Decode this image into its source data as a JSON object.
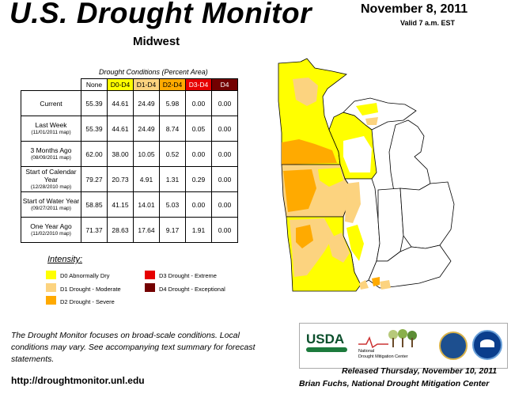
{
  "header": {
    "title": "U.S. Drought Monitor",
    "region": "Midwest",
    "date": "November 8, 2011",
    "valid": "Valid 7 a.m. EST"
  },
  "chart_data": {
    "type": "table",
    "caption": "Drought Conditions (Percent Area)",
    "columns": [
      "None",
      "D0-D4",
      "D1-D4",
      "D2-D4",
      "D3-D4",
      "D4"
    ],
    "rows": [
      {
        "label": "Current",
        "sublabel": "",
        "values": [
          "55.39",
          "44.61",
          "24.49",
          "5.98",
          "0.00",
          "0.00"
        ]
      },
      {
        "label": "Last Week",
        "sublabel": "(11/01/2011 map)",
        "values": [
          "55.39",
          "44.61",
          "24.49",
          "8.74",
          "0.05",
          "0.00"
        ]
      },
      {
        "label": "3 Months Ago",
        "sublabel": "(08/09/2011 map)",
        "values": [
          "62.00",
          "38.00",
          "10.05",
          "0.52",
          "0.00",
          "0.00"
        ]
      },
      {
        "label": "Start of Calendar Year",
        "sublabel": "(12/28/2010 map)",
        "values": [
          "79.27",
          "20.73",
          "4.91",
          "1.31",
          "0.29",
          "0.00"
        ]
      },
      {
        "label": "Start of Water Year",
        "sublabel": "(09/27/2011 map)",
        "values": [
          "58.85",
          "41.15",
          "14.01",
          "5.03",
          "0.00",
          "0.00"
        ]
      },
      {
        "label": "One Year Ago",
        "sublabel": "(11/02/2010 map)",
        "values": [
          "71.37",
          "28.63",
          "17.64",
          "9.17",
          "1.91",
          "0.00"
        ]
      }
    ]
  },
  "legend": {
    "title": "Intensity:",
    "items": [
      {
        "label": "D0 Abnormally Dry",
        "color": "#ffff00"
      },
      {
        "label": "D1 Drought - Moderate",
        "color": "#fcd37f"
      },
      {
        "label": "D2 Drought - Severe",
        "color": "#ffaa00"
      },
      {
        "label": "D3 Drought - Extreme",
        "color": "#e60000"
      },
      {
        "label": "D4 Drought - Exceptional",
        "color": "#730000"
      }
    ]
  },
  "colors": {
    "none_header": "#ffffff",
    "d0": "#ffff00",
    "d1": "#fcd37f",
    "d2": "#ffaa00",
    "d3": "#e60000",
    "d4": "#730000"
  },
  "footer": {
    "note": "The Drought Monitor focuses on broad-scale conditions. Local conditions may vary. See accompanying text summary for forecast statements.",
    "url": "http://droughtmonitor.unl.edu",
    "released": "Released Thursday, November 10, 2011",
    "author": "Brian Fuchs, National Drought Mitigation Center"
  },
  "logos": {
    "usda": "USDA",
    "ndmc_line1": "National",
    "ndmc_line2": "Drought Mitigation Center"
  }
}
